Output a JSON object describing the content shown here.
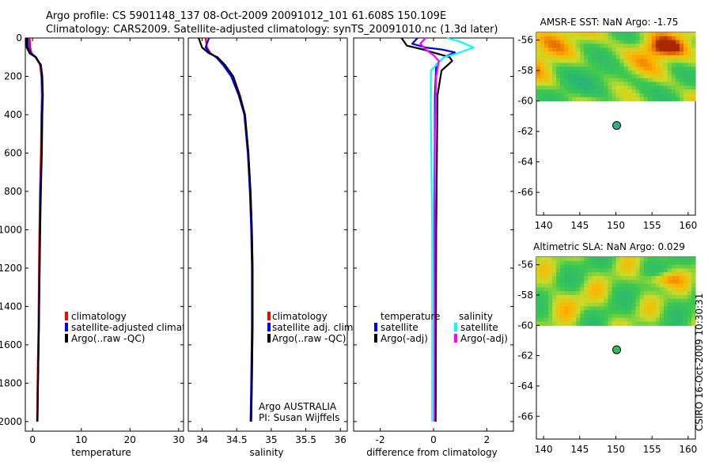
{
  "header": {
    "line1": "Argo profile: CS 5901148_137 08-Oct-2009 20091012_101 61.608S 150.109E",
    "line2": "Climatology: CARS2009. Satellite-adjusted climatology: synTS_20091010.nc (1.3d later)"
  },
  "watermark": "CSIRO 16-Oct-2009 10:30:31",
  "colors": {
    "red": "#ff0000",
    "blue": "#0000ff",
    "black": "#000000",
    "cyan": "#00ffff",
    "magenta": "#ff00ff"
  },
  "chart_data": [
    {
      "id": "temperature",
      "type": "line",
      "xlabel": "temperature",
      "xlim": [
        -1.5,
        31
      ],
      "ylim": [
        0,
        2050
      ],
      "xticks": [
        0,
        10,
        20,
        30
      ],
      "yticks": [
        0,
        200,
        400,
        600,
        800,
        1000,
        1200,
        1400,
        1600,
        1800,
        2000
      ],
      "legend": [
        {
          "color": "red",
          "label": "climatology"
        },
        {
          "color": "blue",
          "label": "satellite-adjusted climatology"
        },
        {
          "color": "black",
          "label": "Argo(..raw -QC)"
        }
      ],
      "series": [
        {
          "name": "climatology",
          "color": "red",
          "x": [
            -0.6,
            -0.5,
            -0.2,
            0.6,
            1.5,
            1.8,
            1.9,
            1.8,
            1.7,
            1.5,
            1.4,
            1.3,
            1.2,
            1.0,
            0.9
          ],
          "y": [
            0,
            50,
            80,
            100,
            140,
            200,
            300,
            400,
            600,
            800,
            1000,
            1200,
            1500,
            1800,
            2000
          ]
        },
        {
          "name": "satellite-adjusted climatology",
          "color": "blue",
          "x": [
            -1.0,
            -0.9,
            -0.4,
            0.7,
            1.6,
            1.9,
            2.0,
            1.9,
            1.8,
            1.6,
            1.5,
            1.4,
            1.3,
            1.1,
            1.0
          ],
          "y": [
            0,
            50,
            80,
            100,
            140,
            200,
            300,
            400,
            600,
            800,
            1000,
            1200,
            1500,
            1800,
            2000
          ]
        },
        {
          "name": "Argo(..raw -QC)",
          "color": "black",
          "x": [
            -1.3,
            -1.2,
            -0.6,
            0.6,
            1.7,
            2.0,
            2.1,
            2.0,
            1.9,
            1.7,
            1.55,
            1.45,
            1.3,
            1.1,
            1.0
          ],
          "y": [
            0,
            50,
            80,
            100,
            140,
            200,
            300,
            400,
            600,
            800,
            1000,
            1200,
            1500,
            1800,
            2000
          ]
        }
      ]
    },
    {
      "id": "salinity",
      "type": "line",
      "xlabel": "salinity",
      "xlim": [
        33.8,
        36.1
      ],
      "ylim": [
        0,
        2050
      ],
      "xticks": [
        34,
        34.5,
        35,
        35.5,
        36
      ],
      "yticks": [
        0,
        200,
        400,
        600,
        800,
        1000,
        1200,
        1400,
        1600,
        1800,
        2000
      ],
      "legend": [
        {
          "color": "red",
          "label": "climatology"
        },
        {
          "color": "blue",
          "label": "satellite adj. clim."
        },
        {
          "color": "black",
          "label": "Argo(..raw -QC)"
        }
      ],
      "notes": [
        "Argo AUSTRALIA",
        "PI: Susan Wijffels"
      ],
      "series": [
        {
          "name": "climatology",
          "color": "red",
          "x": [
            34.05,
            34.07,
            34.12,
            34.2,
            34.32,
            34.45,
            34.55,
            34.62,
            34.67,
            34.7,
            34.72,
            34.73,
            34.73,
            34.72,
            34.71
          ],
          "y": [
            0,
            50,
            80,
            100,
            140,
            200,
            300,
            400,
            600,
            800,
            1000,
            1200,
            1500,
            1800,
            2000
          ]
        },
        {
          "name": "satellite adj. clim.",
          "color": "blue",
          "x": [
            34.1,
            34.05,
            34.12,
            34.2,
            34.3,
            34.42,
            34.53,
            34.61,
            34.66,
            34.69,
            34.71,
            34.72,
            34.72,
            34.71,
            34.7
          ],
          "y": [
            0,
            50,
            80,
            100,
            140,
            200,
            300,
            400,
            600,
            800,
            1000,
            1200,
            1500,
            1800,
            2000
          ]
        },
        {
          "name": "Argo(..raw -QC)",
          "color": "black",
          "x": [
            33.95,
            34.0,
            34.1,
            34.22,
            34.33,
            34.45,
            34.54,
            34.62,
            34.67,
            34.7,
            34.72,
            34.73,
            34.73,
            34.72,
            34.71
          ],
          "y": [
            0,
            50,
            80,
            100,
            140,
            200,
            300,
            400,
            600,
            800,
            1000,
            1200,
            1500,
            1800,
            2000
          ]
        }
      ]
    },
    {
      "id": "difference",
      "type": "line",
      "xlabel": "difference from climatology",
      "xlim": [
        -3,
        3
      ],
      "ylim": [
        0,
        2050
      ],
      "xticks": [
        -2,
        0,
        2
      ],
      "yticks": [
        0,
        200,
        400,
        600,
        800,
        1000,
        1200,
        1400,
        1600,
        1800,
        2000
      ],
      "legend_titles": [
        "temperature",
        "salinity"
      ],
      "legend": [
        {
          "color": "blue",
          "label": "satellite",
          "group": "temperature"
        },
        {
          "color": "black",
          "label": "Argo(-adj)",
          "group": "temperature"
        },
        {
          "color": "cyan",
          "label": "satellite",
          "group": "salinity"
        },
        {
          "color": "magenta",
          "label": "Argo(-adj)",
          "group": "salinity"
        }
      ],
      "series": [
        {
          "name": "T satellite",
          "color": "blue",
          "x": [
            -0.6,
            -0.8,
            -0.3,
            0.3,
            0.8,
            0.4,
            0.1,
            0.05,
            0.03,
            0.05
          ],
          "y": [
            0,
            30,
            50,
            60,
            75,
            100,
            140,
            300,
            1000,
            2000
          ]
        },
        {
          "name": "T Argo(-adj)",
          "color": "black",
          "x": [
            -1.2,
            -1.0,
            -0.4,
            0.1,
            0.6,
            0.7,
            0.3,
            0.15,
            0.1,
            0.08
          ],
          "y": [
            0,
            40,
            60,
            80,
            100,
            120,
            170,
            300,
            1000,
            2000
          ]
        },
        {
          "name": "S satellite",
          "color": "cyan",
          "x": [
            0.5,
            1.0,
            1.5,
            0.9,
            0.4,
            -0.1,
            -0.1,
            -0.05,
            -0.05
          ],
          "y": [
            0,
            20,
            50,
            80,
            100,
            170,
            400,
            1000,
            2000
          ]
        },
        {
          "name": "S Argo(-adj)",
          "color": "magenta",
          "x": [
            -0.3,
            -0.5,
            -0.3,
            0.0,
            0.2,
            0.1,
            0.05,
            0.03
          ],
          "y": [
            0,
            30,
            60,
            90,
            120,
            200,
            500,
            2000
          ]
        }
      ]
    },
    {
      "id": "sst_map",
      "type": "heatmap",
      "title": "AMSR-E SST: NaN Argo: -1.75",
      "xlim": [
        139,
        161
      ],
      "ylim": [
        -67.5,
        -55.5
      ],
      "xticks": [
        140,
        145,
        150,
        155,
        160
      ],
      "yticks": [
        -56,
        -58,
        -60,
        -62,
        -64,
        -66
      ],
      "data_extent_lat": [
        -60,
        -55.5
      ],
      "float_position": {
        "lon": 150.109,
        "lat": -61.608
      }
    },
    {
      "id": "sla_map",
      "type": "heatmap",
      "title": "Altimetric SLA: NaN Argo: 0.029",
      "xlim": [
        139,
        161
      ],
      "ylim": [
        -67.5,
        -55.5
      ],
      "xticks": [
        140,
        145,
        150,
        155,
        160
      ],
      "yticks": [
        -56,
        -58,
        -60,
        -62,
        -64,
        -66
      ],
      "data_extent_lat": [
        -60,
        -55.5
      ],
      "float_position": {
        "lon": 150.109,
        "lat": -61.608
      }
    }
  ]
}
